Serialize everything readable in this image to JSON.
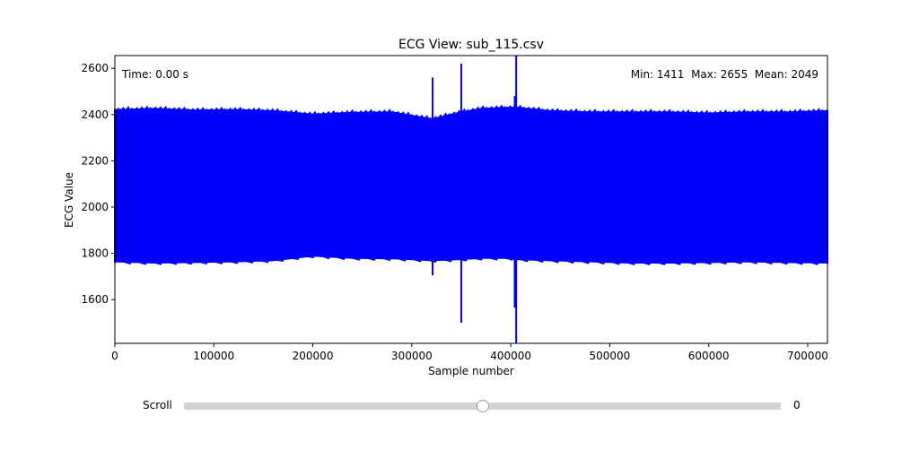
{
  "chart_data": {
    "type": "line",
    "title": "ECG View: sub_115.csv",
    "xlabel": "Sample number",
    "ylabel": "ECG Value",
    "xlim": [
      0,
      720000
    ],
    "ylim": [
      1411,
      2655
    ],
    "xticks": [
      "0",
      "100000",
      "200000",
      "300000",
      "400000",
      "500000",
      "600000",
      "700000"
    ],
    "yticks": [
      "1600",
      "1800",
      "2000",
      "2200",
      "2400",
      "2600"
    ],
    "grid": false,
    "series": [
      {
        "color": "#0000ff",
        "x": [
          0,
          40000,
          80000,
          120000,
          160000,
          200000,
          240000,
          280000,
          300000,
          320000,
          350000,
          370000,
          400000,
          405000,
          440000,
          480000,
          520000,
          560000,
          600000,
          640000,
          680000,
          720000
        ],
        "upper": [
          2420,
          2425,
          2418,
          2420,
          2415,
          2400,
          2408,
          2410,
          2395,
          2380,
          2410,
          2425,
          2430,
          2430,
          2415,
          2410,
          2410,
          2410,
          2405,
          2410,
          2410,
          2415
        ],
        "lower": [
          1765,
          1760,
          1762,
          1765,
          1770,
          1790,
          1780,
          1778,
          1775,
          1770,
          1775,
          1780,
          1780,
          1775,
          1770,
          1765,
          1760,
          1760,
          1762,
          1765,
          1762,
          1760
        ]
      }
    ],
    "spikes": [
      {
        "x": 321000,
        "low": 1705,
        "high": 2560
      },
      {
        "x": 350000,
        "low": 1500,
        "high": 2620
      },
      {
        "x": 404000,
        "low": 1565,
        "high": 2480
      },
      {
        "x": 405500,
        "low": 1411,
        "high": 2655
      }
    ]
  },
  "annotations": {
    "time": "Time: 0.00 s",
    "stats": "Min: 1411  Max: 2655  Mean: 2049"
  },
  "slider": {
    "label": "Scroll",
    "value": 0,
    "value_text": "0",
    "position_fraction": 0.5
  }
}
